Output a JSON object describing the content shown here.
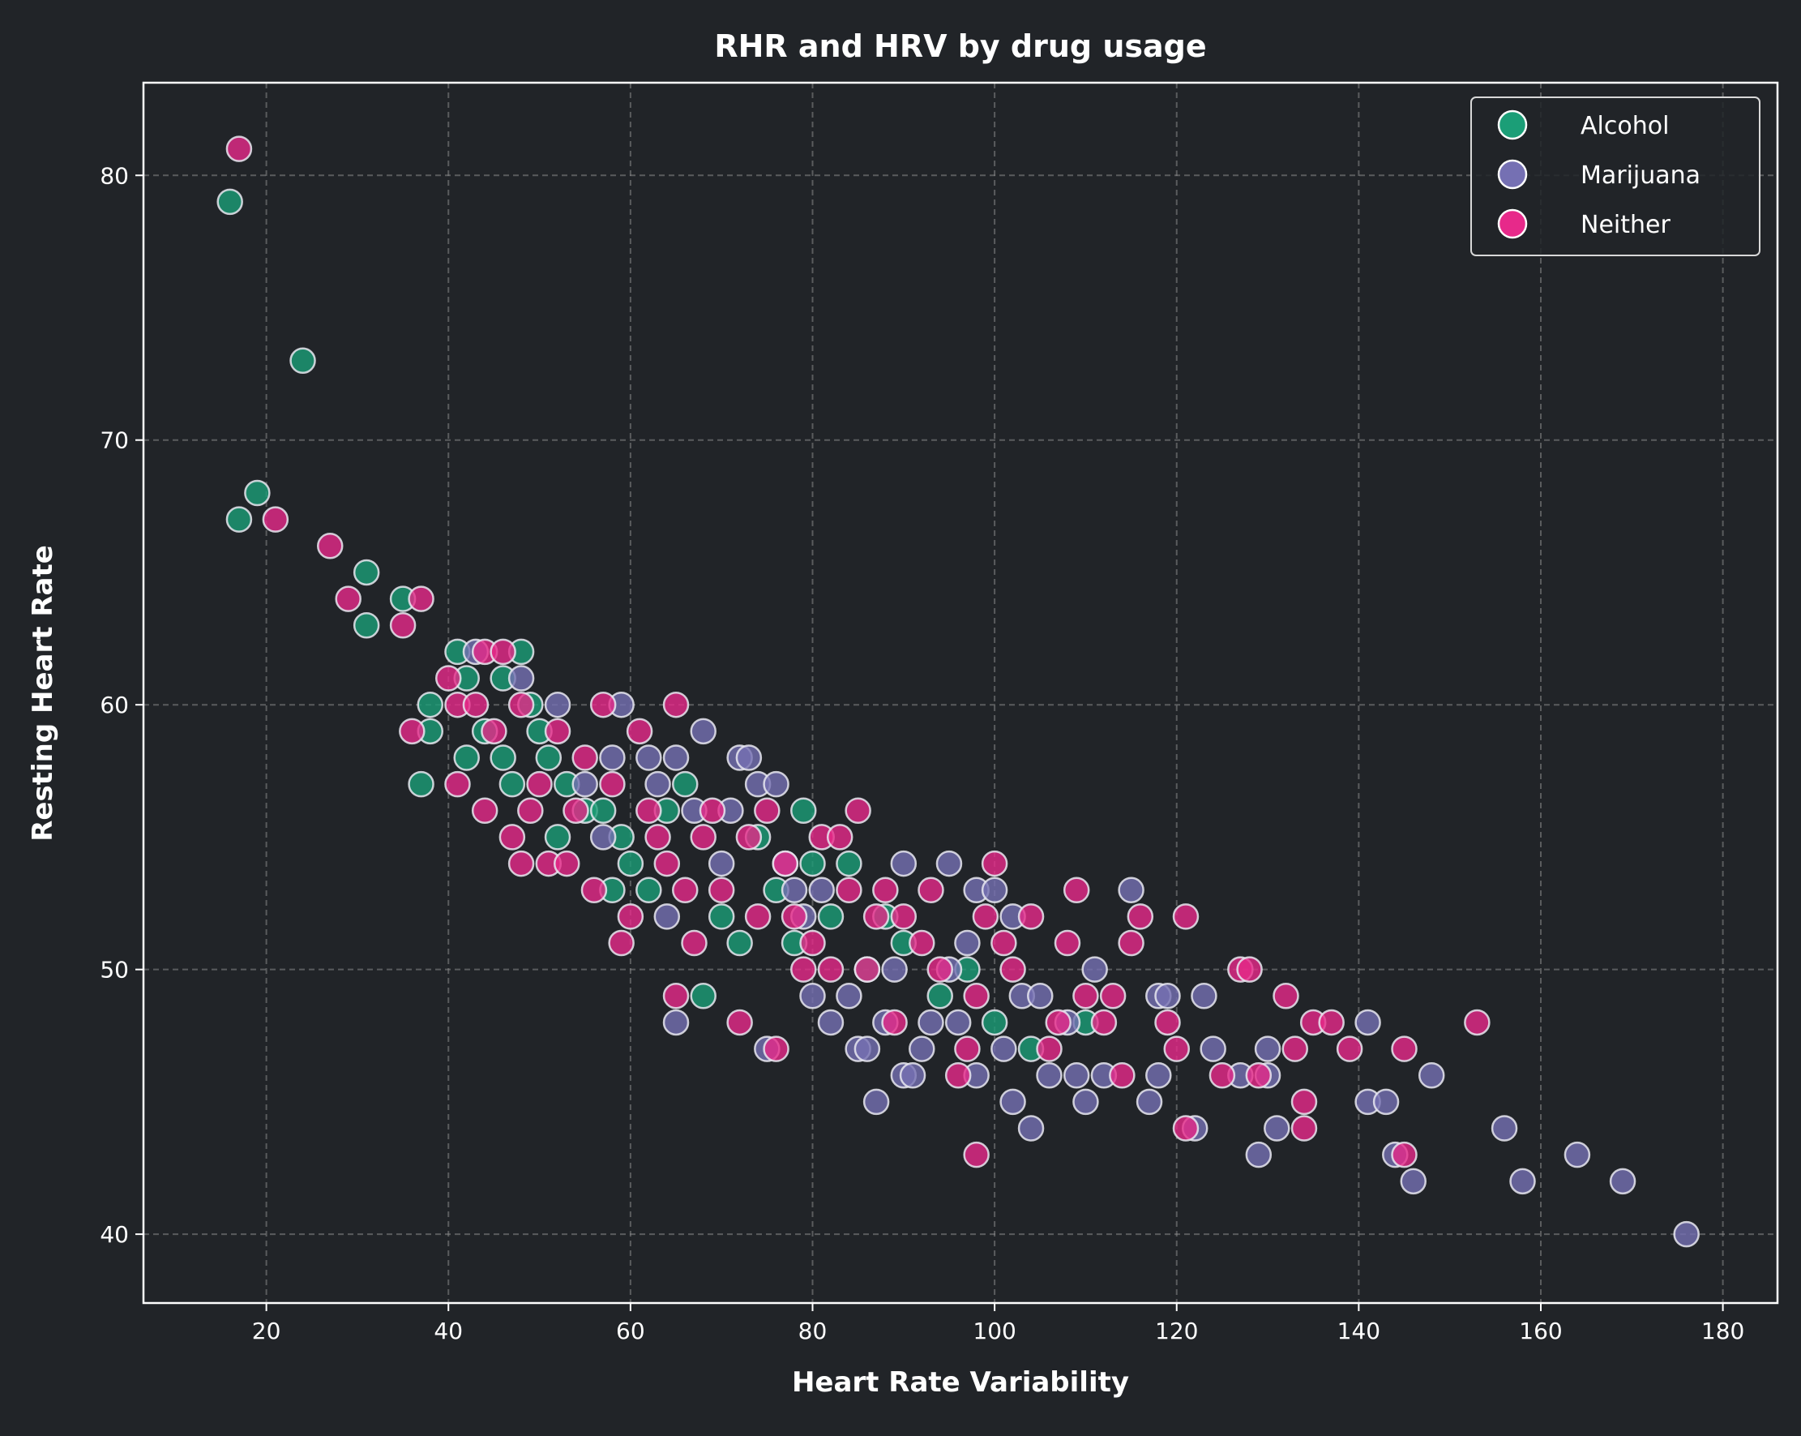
{
  "chart_data": {
    "type": "scatter",
    "title": "RHR and HRV by drug usage",
    "xlabel": "Heart Rate Variability",
    "ylabel": "Resting Heart Rate",
    "xlim": [
      6.5,
      186
    ],
    "ylim": [
      37.4,
      83.5
    ],
    "xticks": [
      20,
      40,
      60,
      80,
      100,
      120,
      140,
      160,
      180
    ],
    "yticks": [
      40,
      50,
      60,
      70,
      80
    ],
    "grid": true,
    "legend_position": "top-right",
    "series": [
      {
        "name": "Alcohol",
        "color": "#1b9e77",
        "points": [
          [
            16,
            79
          ],
          [
            24,
            73
          ],
          [
            17,
            67
          ],
          [
            19,
            68
          ],
          [
            31,
            65
          ],
          [
            31,
            63
          ],
          [
            35,
            64
          ],
          [
            37,
            57
          ],
          [
            38,
            59
          ],
          [
            38,
            60
          ],
          [
            41,
            62
          ],
          [
            42,
            61
          ],
          [
            42,
            58
          ],
          [
            44,
            59
          ],
          [
            46,
            58
          ],
          [
            47,
            57
          ],
          [
            48,
            62
          ],
          [
            46,
            61
          ],
          [
            49,
            60
          ],
          [
            50,
            59
          ],
          [
            51,
            58
          ],
          [
            52,
            55
          ],
          [
            53,
            57
          ],
          [
            55,
            56
          ],
          [
            57,
            56
          ],
          [
            58,
            53
          ],
          [
            59,
            55
          ],
          [
            60,
            54
          ],
          [
            62,
            53
          ],
          [
            64,
            56
          ],
          [
            66,
            57
          ],
          [
            68,
            49
          ],
          [
            70,
            52
          ],
          [
            72,
            51
          ],
          [
            74,
            55
          ],
          [
            76,
            53
          ],
          [
            78,
            51
          ],
          [
            79,
            56
          ],
          [
            80,
            54
          ],
          [
            82,
            52
          ],
          [
            84,
            54
          ],
          [
            86,
            50
          ],
          [
            88,
            52
          ],
          [
            90,
            51
          ],
          [
            94,
            49
          ],
          [
            97,
            50
          ],
          [
            100,
            48
          ],
          [
            104,
            47
          ],
          [
            110,
            48
          ]
        ]
      },
      {
        "name": "Marijuana",
        "color": "#7570b3",
        "points": [
          [
            43,
            62
          ],
          [
            48,
            61
          ],
          [
            52,
            60
          ],
          [
            55,
            57
          ],
          [
            57,
            55
          ],
          [
            58,
            58
          ],
          [
            59,
            60
          ],
          [
            62,
            58
          ],
          [
            63,
            57
          ],
          [
            64,
            52
          ],
          [
            65,
            48
          ],
          [
            65,
            58
          ],
          [
            67,
            56
          ],
          [
            68,
            59
          ],
          [
            70,
            54
          ],
          [
            71,
            56
          ],
          [
            72,
            58
          ],
          [
            73,
            58
          ],
          [
            74,
            57
          ],
          [
            75,
            47
          ],
          [
            76,
            57
          ],
          [
            77,
            54
          ],
          [
            78,
            53
          ],
          [
            79,
            52
          ],
          [
            80,
            49
          ],
          [
            81,
            53
          ],
          [
            82,
            48
          ],
          [
            84,
            49
          ],
          [
            85,
            47
          ],
          [
            86,
            47
          ],
          [
            87,
            45
          ],
          [
            88,
            48
          ],
          [
            89,
            50
          ],
          [
            90,
            54
          ],
          [
            90,
            46
          ],
          [
            91,
            46
          ],
          [
            92,
            47
          ],
          [
            93,
            48
          ],
          [
            95,
            54
          ],
          [
            95,
            50
          ],
          [
            96,
            48
          ],
          [
            97,
            51
          ],
          [
            98,
            53
          ],
          [
            98,
            46
          ],
          [
            100,
            53
          ],
          [
            101,
            47
          ],
          [
            102,
            45
          ],
          [
            102,
            52
          ],
          [
            103,
            49
          ],
          [
            104,
            44
          ],
          [
            105,
            49
          ],
          [
            106,
            46
          ],
          [
            108,
            48
          ],
          [
            109,
            46
          ],
          [
            110,
            45
          ],
          [
            111,
            50
          ],
          [
            112,
            46
          ],
          [
            115,
            53
          ],
          [
            117,
            45
          ],
          [
            118,
            46
          ],
          [
            118,
            49
          ],
          [
            119,
            49
          ],
          [
            122,
            44
          ],
          [
            123,
            49
          ],
          [
            124,
            47
          ],
          [
            127,
            46
          ],
          [
            129,
            43
          ],
          [
            130,
            47
          ],
          [
            130,
            46
          ],
          [
            131,
            44
          ],
          [
            141,
            48
          ],
          [
            141,
            45
          ],
          [
            143,
            45
          ],
          [
            144,
            43
          ],
          [
            146,
            42
          ],
          [
            148,
            46
          ],
          [
            156,
            44
          ],
          [
            158,
            42
          ],
          [
            164,
            43
          ],
          [
            169,
            42
          ],
          [
            176,
            40
          ]
        ]
      },
      {
        "name": "Neither",
        "color": "#e7298a",
        "points": [
          [
            17,
            81
          ],
          [
            21,
            67
          ],
          [
            27,
            66
          ],
          [
            29,
            64
          ],
          [
            35,
            63
          ],
          [
            37,
            64
          ],
          [
            36,
            59
          ],
          [
            40,
            61
          ],
          [
            41,
            60
          ],
          [
            41,
            57
          ],
          [
            43,
            60
          ],
          [
            44,
            56
          ],
          [
            44,
            62
          ],
          [
            45,
            59
          ],
          [
            46,
            62
          ],
          [
            47,
            55
          ],
          [
            48,
            54
          ],
          [
            48,
            60
          ],
          [
            49,
            56
          ],
          [
            50,
            57
          ],
          [
            51,
            54
          ],
          [
            52,
            59
          ],
          [
            53,
            54
          ],
          [
            54,
            56
          ],
          [
            55,
            58
          ],
          [
            56,
            53
          ],
          [
            57,
            60
          ],
          [
            58,
            57
          ],
          [
            59,
            51
          ],
          [
            60,
            52
          ],
          [
            61,
            59
          ],
          [
            62,
            56
          ],
          [
            63,
            55
          ],
          [
            64,
            54
          ],
          [
            65,
            60
          ],
          [
            65,
            49
          ],
          [
            66,
            53
          ],
          [
            67,
            51
          ],
          [
            68,
            55
          ],
          [
            69,
            56
          ],
          [
            70,
            53
          ],
          [
            72,
            48
          ],
          [
            73,
            55
          ],
          [
            74,
            52
          ],
          [
            75,
            56
          ],
          [
            76,
            47
          ],
          [
            77,
            54
          ],
          [
            78,
            52
          ],
          [
            79,
            50
          ],
          [
            80,
            51
          ],
          [
            81,
            55
          ],
          [
            82,
            50
          ],
          [
            83,
            55
          ],
          [
            84,
            53
          ],
          [
            85,
            56
          ],
          [
            86,
            50
          ],
          [
            87,
            52
          ],
          [
            88,
            53
          ],
          [
            89,
            48
          ],
          [
            90,
            52
          ],
          [
            92,
            51
          ],
          [
            93,
            53
          ],
          [
            94,
            50
          ],
          [
            96,
            46
          ],
          [
            97,
            47
          ],
          [
            98,
            43
          ],
          [
            98,
            49
          ],
          [
            99,
            52
          ],
          [
            100,
            54
          ],
          [
            101,
            51
          ],
          [
            102,
            50
          ],
          [
            104,
            52
          ],
          [
            106,
            47
          ],
          [
            107,
            48
          ],
          [
            108,
            51
          ],
          [
            109,
            53
          ],
          [
            110,
            49
          ],
          [
            112,
            48
          ],
          [
            113,
            49
          ],
          [
            114,
            46
          ],
          [
            115,
            51
          ],
          [
            116,
            52
          ],
          [
            119,
            48
          ],
          [
            120,
            47
          ],
          [
            121,
            52
          ],
          [
            121,
            44
          ],
          [
            125,
            46
          ],
          [
            127,
            50
          ],
          [
            128,
            50
          ],
          [
            129,
            46
          ],
          [
            132,
            49
          ],
          [
            133,
            47
          ],
          [
            134,
            45
          ],
          [
            134,
            44
          ],
          [
            135,
            48
          ],
          [
            137,
            48
          ],
          [
            139,
            47
          ],
          [
            145,
            47
          ],
          [
            145,
            43
          ],
          [
            153,
            48
          ]
        ]
      }
    ]
  }
}
